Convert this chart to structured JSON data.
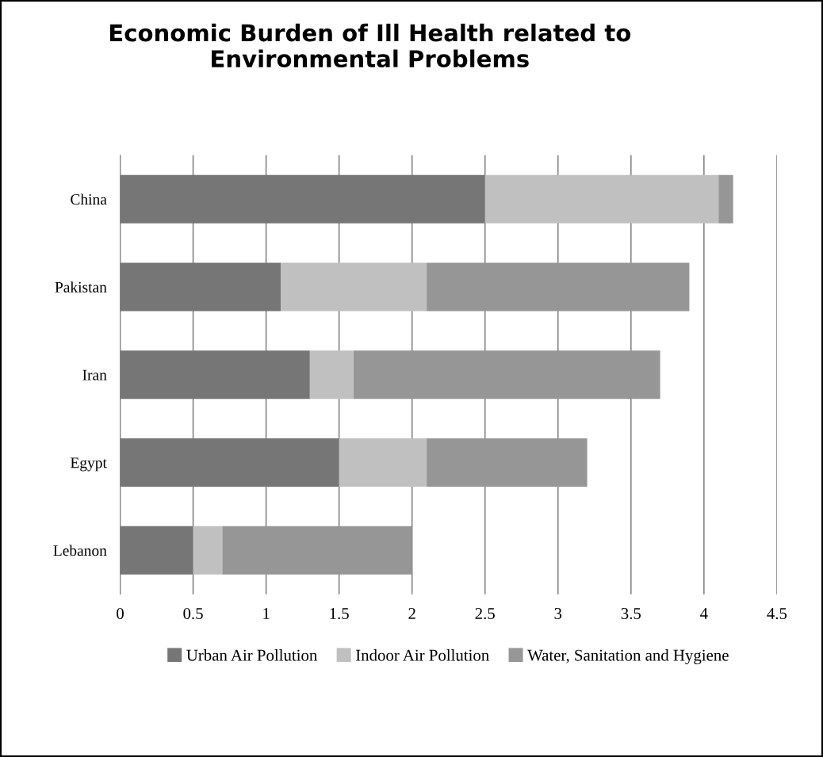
{
  "chart_data": {
    "type": "bar",
    "orientation": "horizontal",
    "stacked": true,
    "title": "Economic Burden of Ill Health related to\nEnvironmental Problems",
    "categories": [
      "China",
      "Pakistan",
      "Iran",
      "Egypt",
      "Lebanon"
    ],
    "series": [
      {
        "name": "Urban Air Pollution",
        "color": "#767676",
        "values": [
          2.5,
          1.1,
          1.3,
          1.5,
          0.5
        ]
      },
      {
        "name": "Indoor Air Pollution",
        "color": "#c0c0c0",
        "values": [
          1.6,
          1.0,
          0.3,
          0.6,
          0.2
        ]
      },
      {
        "name": "Water, Sanitation and Hygiene",
        "color": "#969696",
        "values": [
          0.1,
          1.8,
          2.1,
          1.1,
          1.3
        ]
      }
    ],
    "xlim": [
      0,
      4.5
    ],
    "xticks": [
      0,
      0.5,
      1,
      1.5,
      2,
      2.5,
      3,
      3.5,
      4,
      4.5
    ],
    "grid": "x",
    "legend": "bottom"
  }
}
